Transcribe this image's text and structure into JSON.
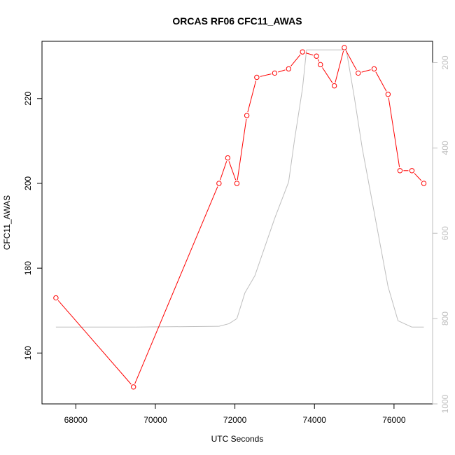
{
  "chart_data": {
    "type": "line",
    "title": "ORCAS RF06 CFC11_AWAS",
    "xlabel": "UTC Seconds",
    "ylabel": "CFC11_AWAS",
    "xlim": [
      67150,
      76970
    ],
    "ylim": [
      148,
      233.5
    ],
    "xticks": [
      "68000",
      "70000",
      "72000",
      "74000",
      "76000"
    ],
    "yticks": [
      "160",
      "180",
      "200",
      "220"
    ],
    "secondary_axis": {
      "position": "right",
      "inverted": true,
      "range": [
        1000,
        150
      ],
      "ticks": [
        "200",
        "400",
        "600",
        "800",
        "1000"
      ]
    },
    "grid": false,
    "series": [
      {
        "color": "#ff0000",
        "marker": "open-circle",
        "axis": "left",
        "x": [
          67500,
          69450,
          71600,
          71820,
          72050,
          72300,
          72550,
          73000,
          73350,
          73700,
          74050,
          74150,
          74500,
          74750,
          75100,
          75500,
          75850,
          76150,
          76450,
          76750
        ],
        "y": [
          173,
          152,
          200,
          206,
          200,
          216,
          225,
          226,
          227,
          231,
          230,
          228,
          223,
          232,
          226,
          227,
          221,
          203,
          203,
          200
        ]
      },
      {
        "color": "#bebebe",
        "marker": "none",
        "axis": "right",
        "x": [
          67500,
          69500,
          71600,
          71850,
          72050,
          72250,
          72500,
          73000,
          73350,
          73500,
          73700,
          73800,
          74800,
          75000,
          75200,
          75600,
          75850,
          76100,
          76450,
          76750
        ],
        "y": [
          820,
          820,
          818,
          812,
          800,
          740,
          700,
          565,
          480,
          380,
          260,
          170,
          170,
          280,
          400,
          600,
          725,
          805,
          820,
          820
        ]
      }
    ]
  }
}
